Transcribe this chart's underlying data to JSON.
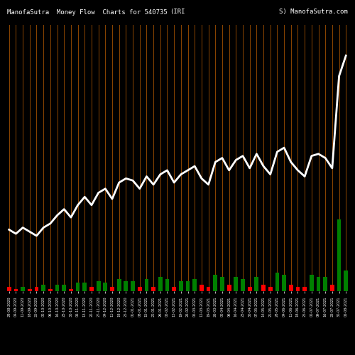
{
  "title_left": "ManofaSutra  Money Flow  Charts for 540735",
  "title_mid": "(IRI",
  "title_right": "S) ManofaSutra.com",
  "background_color": "#000000",
  "bar_colors": [
    "#ff0000",
    "#ff0000",
    "#008000",
    "#ff0000",
    "#ff0000",
    "#008000",
    "#ff0000",
    "#008000",
    "#008000",
    "#ff0000",
    "#008000",
    "#008000",
    "#ff0000",
    "#008000",
    "#008000",
    "#ff0000",
    "#008000",
    "#008000",
    "#008000",
    "#ff0000",
    "#008000",
    "#ff0000",
    "#008000",
    "#008000",
    "#ff0000",
    "#008000",
    "#008000",
    "#008000",
    "#ff0000",
    "#ff0000",
    "#008000",
    "#008000",
    "#ff0000",
    "#008000",
    "#008000",
    "#ff0000",
    "#008000",
    "#ff0000",
    "#ff0000",
    "#008000",
    "#008000",
    "#ff0000",
    "#ff0000",
    "#ff0000",
    "#008000",
    "#008000",
    "#008000",
    "#ff0000",
    "#008000",
    "#008000"
  ],
  "bar_heights": [
    2,
    1,
    2,
    1,
    2,
    3,
    1,
    3,
    3,
    1,
    4,
    4,
    2,
    5,
    4,
    2,
    6,
    5,
    5,
    2,
    6,
    2,
    7,
    6,
    2,
    5,
    5,
    6,
    3,
    2,
    8,
    7,
    3,
    7,
    6,
    2,
    7,
    3,
    2,
    9,
    8,
    3,
    2,
    2,
    8,
    7,
    7,
    3,
    35,
    10
  ],
  "line_values": [
    30,
    28,
    31,
    29,
    27,
    31,
    33,
    37,
    40,
    36,
    42,
    46,
    42,
    48,
    50,
    45,
    53,
    55,
    54,
    50,
    56,
    52,
    57,
    59,
    53,
    57,
    59,
    61,
    55,
    52,
    63,
    65,
    59,
    64,
    66,
    60,
    67,
    61,
    57,
    68,
    70,
    63,
    59,
    56,
    66,
    67,
    65,
    60,
    105,
    115
  ],
  "vline_color": "#8B4500",
  "vline_alpha": 1.0,
  "line_color": "#ffffff",
  "line_width": 2.0,
  "xlabels": [
    "28-08-2020",
    "04-09-2020",
    "11-09-2020",
    "18-09-2020",
    "25-09-2020",
    "02-10-2020",
    "09-10-2020",
    "16-10-2020",
    "23-10-2020",
    "30-10-2020",
    "06-11-2020",
    "13-11-2020",
    "20-11-2020",
    "27-11-2020",
    "04-12-2020",
    "11-12-2020",
    "18-12-2020",
    "25-12-2020",
    "01-01-2021",
    "08-01-2021",
    "15-01-2021",
    "22-01-2021",
    "29-01-2021",
    "05-02-2021",
    "12-02-2021",
    "19-02-2021",
    "26-02-2021",
    "05-03-2021",
    "12-03-2021",
    "19-03-2021",
    "26-03-2021",
    "02-04-2021",
    "09-04-2021",
    "16-04-2021",
    "23-04-2021",
    "30-04-2021",
    "07-05-2021",
    "14-05-2021",
    "21-05-2021",
    "28-05-2021",
    "04-06-2021",
    "11-06-2021",
    "18-06-2021",
    "25-06-2021",
    "02-07-2021",
    "09-07-2021",
    "16-07-2021",
    "23-07-2021",
    "30-07-2021",
    "06-08-2021"
  ]
}
